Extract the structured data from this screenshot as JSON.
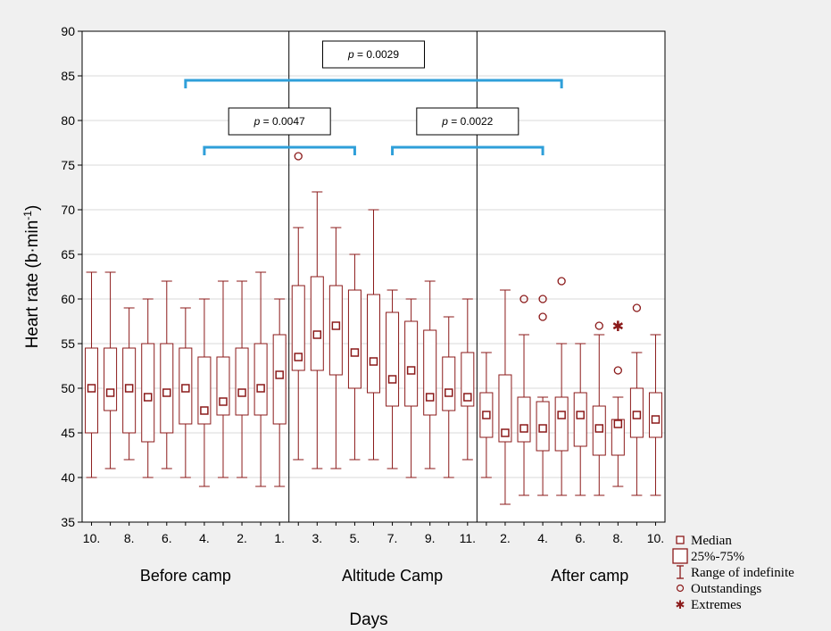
{
  "chart_data": {
    "type": "boxplot",
    "ylabel": "Heart rate (b·min",
    "ylabel_sup": "-1",
    "ylabel_close": ")",
    "xlabel": "Days",
    "ylim": [
      35,
      90
    ],
    "yticks": [
      35,
      40,
      45,
      50,
      55,
      60,
      65,
      70,
      75,
      80,
      85,
      90
    ],
    "grid": true,
    "groups": [
      {
        "label": "Before camp",
        "start": 0,
        "end": 10
      },
      {
        "label": "Altitude Camp",
        "start": 11,
        "end": 21
      },
      {
        "label": "After camp",
        "start": 22,
        "end": 31
      }
    ],
    "box_color": "#8b1a1a",
    "bracket_color": "#2f9fd9",
    "boxes": [
      {
        "tick": "10.",
        "min": 40,
        "q1": 45,
        "median": 50,
        "q3": 54.5,
        "max": 63,
        "outliers": [],
        "extremes": []
      },
      {
        "tick": "",
        "min": 41,
        "q1": 47.5,
        "median": 49.5,
        "q3": 54.5,
        "max": 63,
        "outliers": [],
        "extremes": []
      },
      {
        "tick": "8.",
        "min": 42,
        "q1": 45,
        "median": 50,
        "q3": 54.5,
        "max": 59,
        "outliers": [],
        "extremes": []
      },
      {
        "tick": "",
        "min": 40,
        "q1": 44,
        "median": 49,
        "q3": 55,
        "max": 60,
        "outliers": [],
        "extremes": []
      },
      {
        "tick": "6.",
        "min": 41,
        "q1": 45,
        "median": 49.5,
        "q3": 55,
        "max": 62,
        "outliers": [],
        "extremes": []
      },
      {
        "tick": "",
        "min": 40,
        "q1": 46,
        "median": 50,
        "q3": 54.5,
        "max": 59,
        "outliers": [],
        "extremes": []
      },
      {
        "tick": "4.",
        "min": 39,
        "q1": 46,
        "median": 47.5,
        "q3": 53.5,
        "max": 60,
        "outliers": [],
        "extremes": []
      },
      {
        "tick": "",
        "min": 40,
        "q1": 47,
        "median": 48.5,
        "q3": 53.5,
        "max": 62,
        "outliers": [],
        "extremes": []
      },
      {
        "tick": "2.",
        "min": 40,
        "q1": 47,
        "median": 49.5,
        "q3": 54.5,
        "max": 62,
        "outliers": [],
        "extremes": []
      },
      {
        "tick": "",
        "min": 39,
        "q1": 47,
        "median": 50,
        "q3": 55,
        "max": 63,
        "outliers": [],
        "extremes": []
      },
      {
        "tick": "1.",
        "min": 39,
        "q1": 46,
        "median": 51.5,
        "q3": 56,
        "max": 60,
        "outliers": [],
        "extremes": []
      },
      {
        "tick": "",
        "min": 42,
        "q1": 52,
        "median": 53.5,
        "q3": 61.5,
        "max": 68,
        "outliers": [
          76
        ],
        "extremes": []
      },
      {
        "tick": "3.",
        "min": 41,
        "q1": 52,
        "median": 56,
        "q3": 62.5,
        "max": 72,
        "outliers": [],
        "extremes": []
      },
      {
        "tick": "",
        "min": 41,
        "q1": 51.5,
        "median": 57,
        "q3": 61.5,
        "max": 68,
        "outliers": [],
        "extremes": []
      },
      {
        "tick": "5.",
        "min": 42,
        "q1": 50,
        "median": 54,
        "q3": 61,
        "max": 65,
        "outliers": [],
        "extremes": []
      },
      {
        "tick": "",
        "min": 42,
        "q1": 49.5,
        "median": 53,
        "q3": 60.5,
        "max": 70,
        "outliers": [],
        "extremes": []
      },
      {
        "tick": "7.",
        "min": 41,
        "q1": 48,
        "median": 51,
        "q3": 58.5,
        "max": 61,
        "outliers": [],
        "extremes": []
      },
      {
        "tick": "",
        "min": 40,
        "q1": 48,
        "median": 52,
        "q3": 57.5,
        "max": 60,
        "outliers": [],
        "extremes": []
      },
      {
        "tick": "9.",
        "min": 41,
        "q1": 47,
        "median": 49,
        "q3": 56.5,
        "max": 62,
        "outliers": [],
        "extremes": []
      },
      {
        "tick": "",
        "min": 40,
        "q1": 47.5,
        "median": 49.5,
        "q3": 53.5,
        "max": 58,
        "outliers": [],
        "extremes": []
      },
      {
        "tick": "11.",
        "min": 42,
        "q1": 48,
        "median": 49,
        "q3": 54,
        "max": 60,
        "outliers": [],
        "extremes": []
      },
      {
        "tick": "",
        "min": 40,
        "q1": 44.5,
        "median": 47,
        "q3": 49.5,
        "max": 54,
        "outliers": [],
        "extremes": []
      },
      {
        "tick": "2.",
        "min": 37,
        "q1": 44,
        "median": 45,
        "q3": 51.5,
        "max": 61,
        "outliers": [],
        "extremes": []
      },
      {
        "tick": "",
        "min": 38,
        "q1": 44,
        "median": 45.5,
        "q3": 49,
        "max": 56,
        "outliers": [
          60
        ],
        "extremes": []
      },
      {
        "tick": "4.",
        "min": 38,
        "q1": 43,
        "median": 45.5,
        "q3": 48.5,
        "max": 49,
        "outliers": [
          58,
          60
        ],
        "extremes": []
      },
      {
        "tick": "",
        "min": 38,
        "q1": 43,
        "median": 47,
        "q3": 49,
        "max": 55,
        "outliers": [
          62
        ],
        "extremes": []
      },
      {
        "tick": "6.",
        "min": 38,
        "q1": 43.5,
        "median": 47,
        "q3": 49.5,
        "max": 55,
        "outliers": [],
        "extremes": []
      },
      {
        "tick": "",
        "min": 38,
        "q1": 42.5,
        "median": 45.5,
        "q3": 48,
        "max": 56,
        "outliers": [
          57
        ],
        "extremes": []
      },
      {
        "tick": "8.",
        "min": 39,
        "q1": 42.5,
        "median": 46,
        "q3": 46.5,
        "max": 49,
        "outliers": [
          52
        ],
        "extremes": [
          57
        ]
      },
      {
        "tick": "",
        "min": 38,
        "q1": 44.5,
        "median": 47,
        "q3": 50,
        "max": 54,
        "outliers": [
          59
        ],
        "extremes": []
      },
      {
        "tick": "10.",
        "min": 38,
        "q1": 44.5,
        "median": 46.5,
        "q3": 49.5,
        "max": 56,
        "outliers": [],
        "extremes": []
      }
    ],
    "separators_after": [
      10,
      20
    ],
    "brackets": [
      {
        "label": "p = 0.0029",
        "from": 5,
        "to": 25,
        "y": 84.5
      },
      {
        "label": "p = 0.0047",
        "from": 6,
        "to": 14,
        "y": 77
      },
      {
        "label": "p = 0.0022",
        "from": 16,
        "to": 24,
        "y": 77
      }
    ],
    "legend": {
      "position": "bottom-right",
      "items": [
        {
          "symbol": "median",
          "label": "Median"
        },
        {
          "symbol": "box",
          "label": "25%-75%"
        },
        {
          "symbol": "whisker",
          "label": "Range of indefinite"
        },
        {
          "symbol": "outlier",
          "label": "Outstandings"
        },
        {
          "symbol": "extreme",
          "label": "Extremes"
        }
      ]
    }
  }
}
